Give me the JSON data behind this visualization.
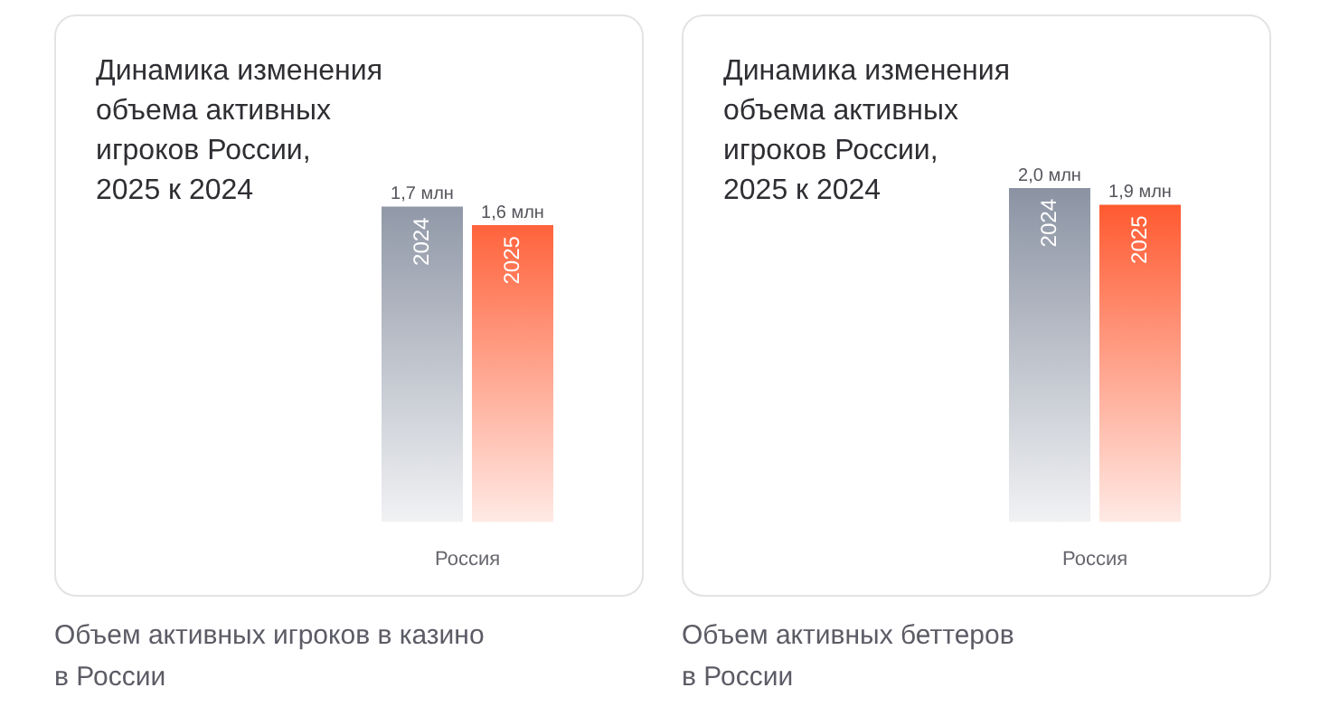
{
  "chart_data": [
    {
      "type": "bar",
      "title": "Динамика изменения\nобъема активных\nигроков России,\n2025 к 2024",
      "categories": [
        "Россия"
      ],
      "tick_labels": "x",
      "series": [
        {
          "name": "2024",
          "color": "#8b93a3",
          "values": [
            1.7
          ],
          "value_labels": [
            "1,7 млн"
          ]
        },
        {
          "name": "2025",
          "color": "#ff5227",
          "values": [
            1.6
          ],
          "value_labels": [
            "1,6 млн"
          ]
        }
      ],
      "annotations": [
        "Объем активных игроков в казино\nв России"
      ]
    },
    {
      "type": "bar",
      "title": "Динамика изменения\nобъема активных\nигроков России,\n2025 к 2024",
      "categories": [
        "Россия"
      ],
      "tick_labels": "x",
      "series": [
        {
          "name": "2024",
          "color": "#8b93a3",
          "values": [
            2.0
          ],
          "value_labels": [
            "2,0 млн"
          ]
        },
        {
          "name": "2025",
          "color": "#ff5227",
          "values": [
            1.9
          ],
          "value_labels": [
            "1,9 млн"
          ]
        }
      ],
      "annotations": [
        "Объем активных беттеров\nв России"
      ]
    }
  ]
}
